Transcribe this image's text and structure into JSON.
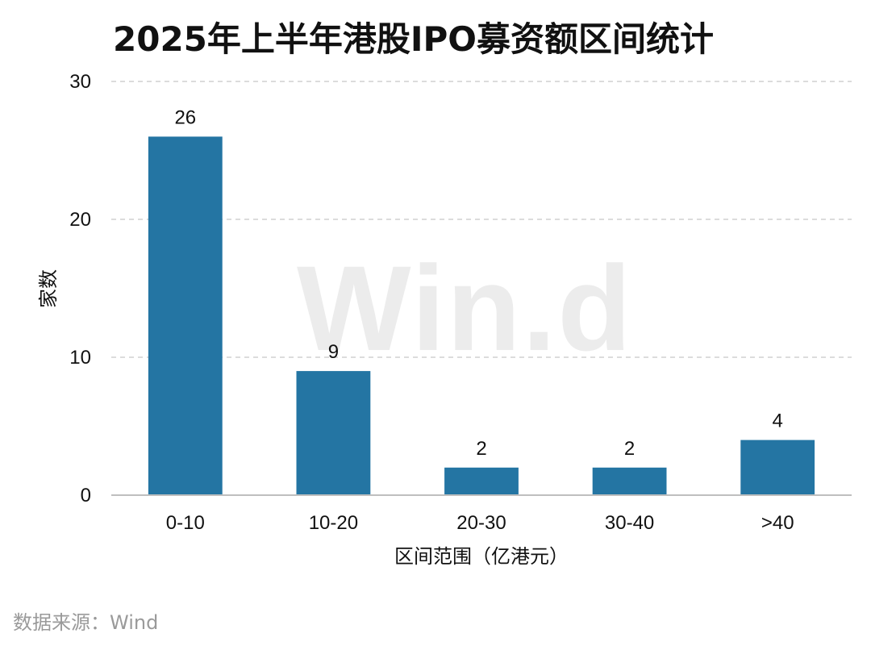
{
  "title": "2025年上半年港股IPO募资额区间统计",
  "source": "数据来源：Wind",
  "watermark": "Win.d",
  "colors": {
    "bar": "#2475a3",
    "grid": "#d0d0d0",
    "axis": "#bfbfbf"
  },
  "chart_data": {
    "type": "bar",
    "title": "2025年上半年港股IPO募资额区间统计",
    "xlabel": "区间范围（亿港元）",
    "ylabel": "家数",
    "categories": [
      "0-10",
      "10-20",
      "20-30",
      "30-40",
      ">40"
    ],
    "values": [
      26,
      9,
      2,
      2,
      4
    ],
    "data_labels": [
      "26",
      "9",
      "2",
      "2",
      "4"
    ],
    "ylim": [
      0,
      30
    ],
    "yticks": [
      0,
      10,
      20,
      30
    ],
    "grid": true,
    "legend": "none"
  }
}
